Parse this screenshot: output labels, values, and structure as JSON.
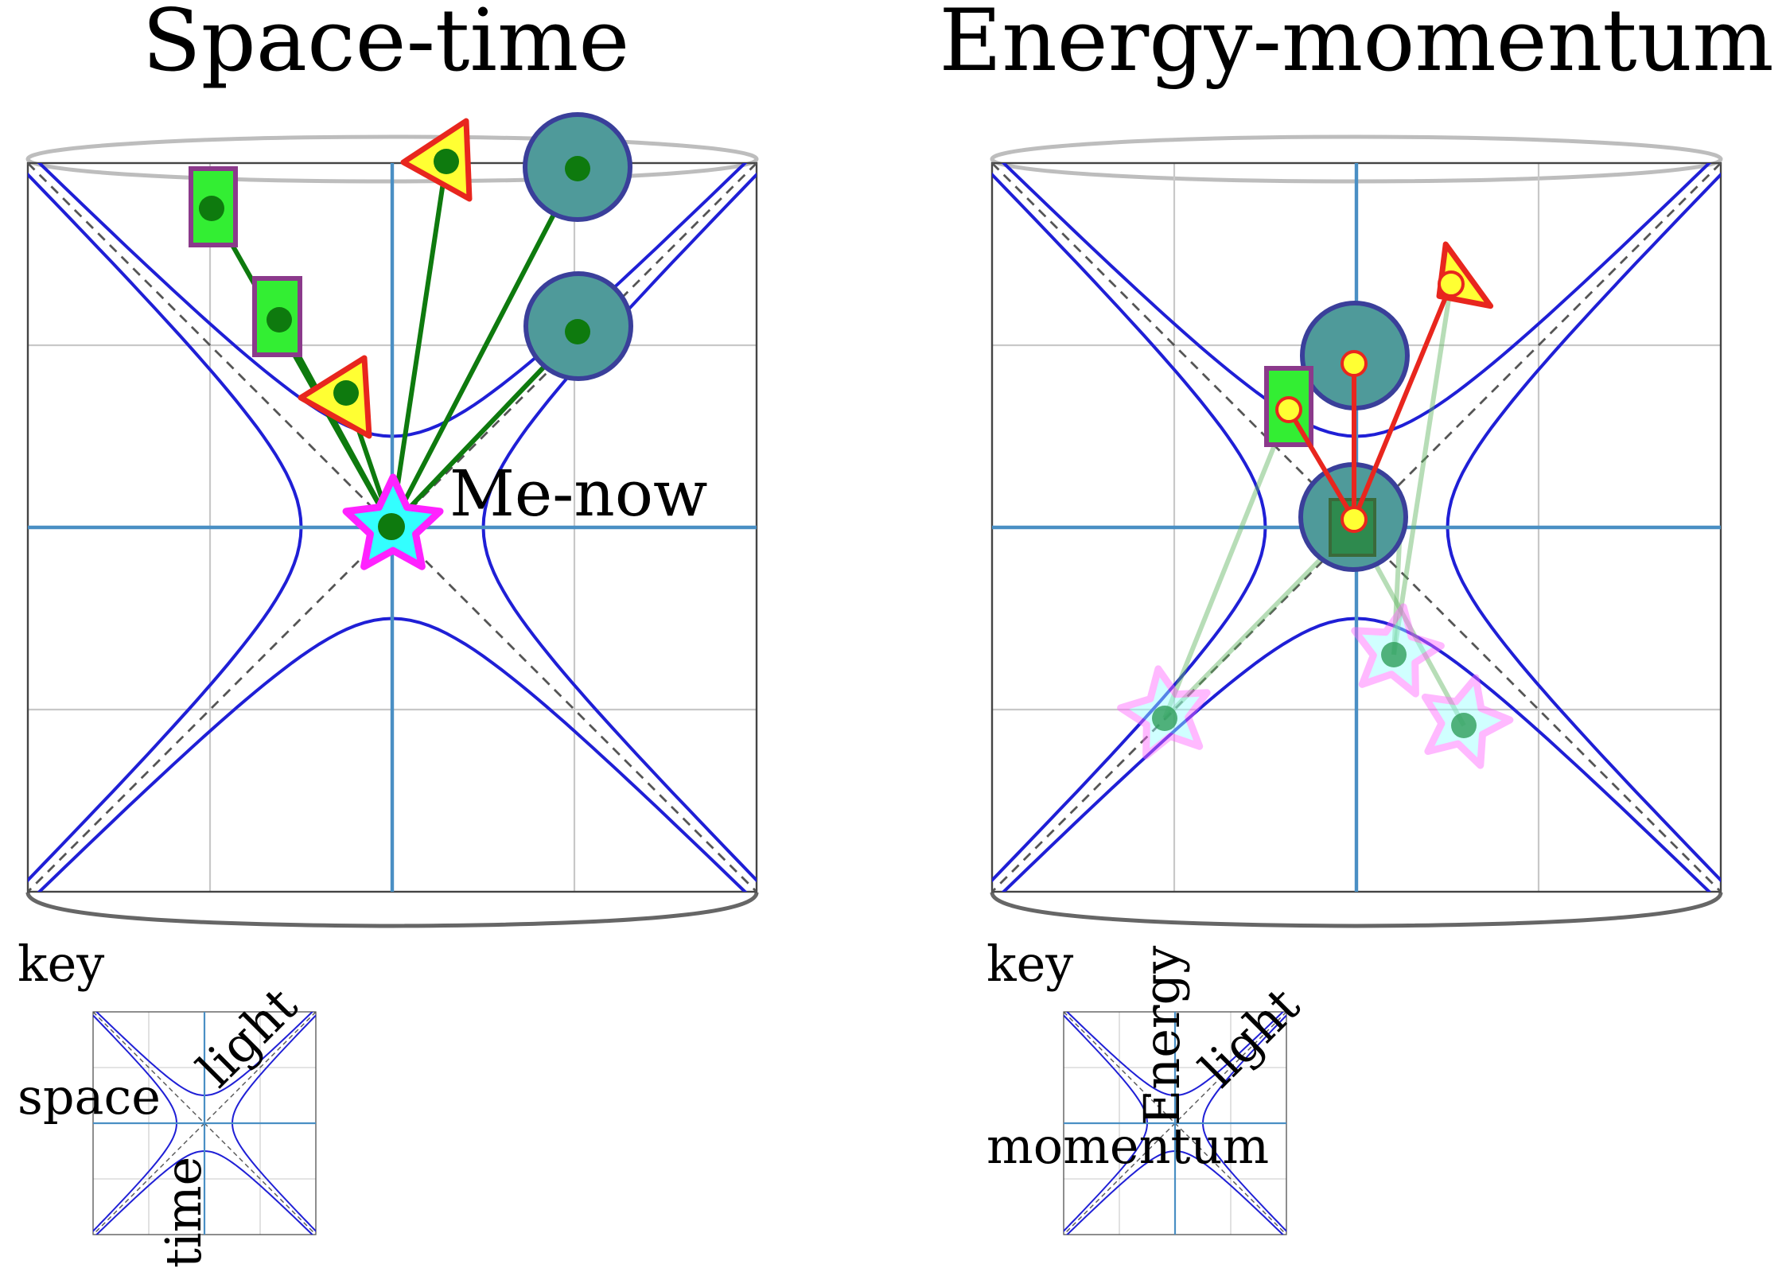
{
  "panels": {
    "spacetime": {
      "title": "Space-time",
      "event_label": "Me-now"
    },
    "energy": {
      "title": "Energy-momentum"
    }
  },
  "keys": {
    "spacetime": {
      "label": "key",
      "axis_space": "space",
      "axis_time": "time",
      "light": "light"
    },
    "energy": {
      "label": "key",
      "axis_energy": "Energy",
      "axis_momentum": "momentum",
      "light": "light"
    }
  },
  "colors": {
    "hyperbola": "#1f1fd6",
    "axis": "#4a8fc4",
    "grid": "#c8c8c8",
    "worldline": "#0e7a0e",
    "momentum_line": "#e8261e",
    "circle_fill": "#4f9a9a",
    "circle_stroke": "#3a3f9a",
    "rect_fill": "#33ee33",
    "rect_stroke": "#8b3a8b",
    "triangle_fill": "#ffff33",
    "triangle_stroke": "#e8261e",
    "star_fill": "#33ffff",
    "star_stroke": "#ff22ff"
  }
}
